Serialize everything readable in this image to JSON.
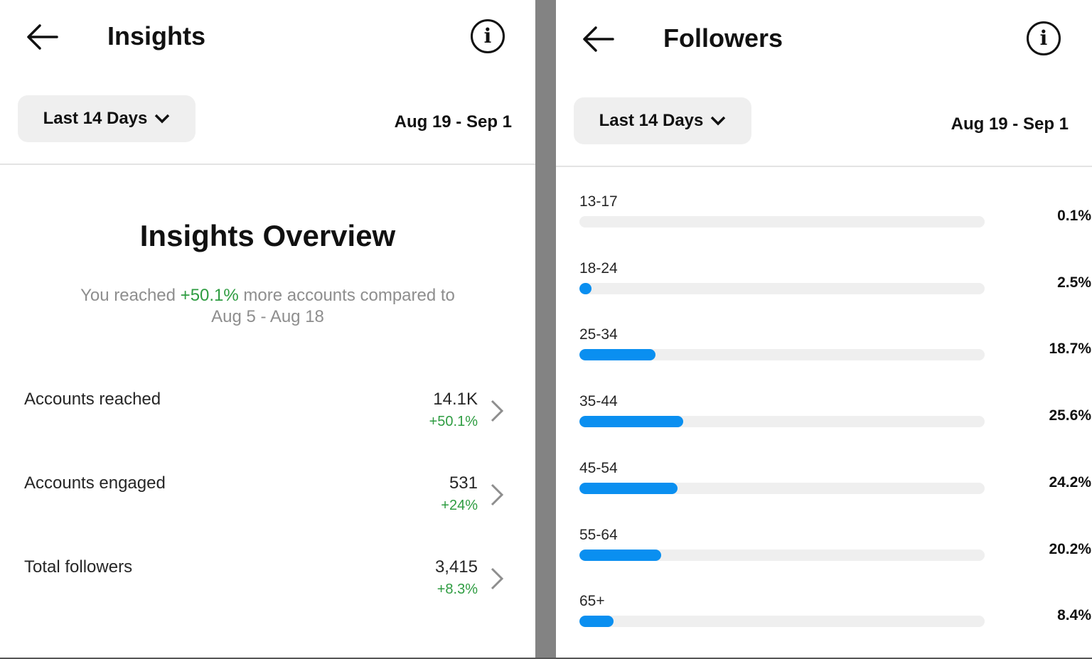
{
  "left": {
    "title": "Insights",
    "range_label": "Last 14 Days",
    "dates": "Aug 19 - Sep 1",
    "overview_title": "Insights Overview",
    "overview_pre": "You reached ",
    "overview_highlight": "+50.1%",
    "overview_post": " more accounts compared to",
    "overview_compare": "Aug 5 - Aug 18",
    "metrics": [
      {
        "label": "Accounts reached",
        "value": "14.1K",
        "change": "+50.1%"
      },
      {
        "label": "Accounts engaged",
        "value": "531",
        "change": "+24%"
      },
      {
        "label": "Total followers",
        "value": "3,415",
        "change": "+8.3%"
      }
    ]
  },
  "right": {
    "title": "Followers",
    "range_label": "Last 14 Days",
    "dates": "Aug 19 - Sep 1",
    "ages": [
      {
        "label": "13-17",
        "pct": "0.1%",
        "value": 0.1
      },
      {
        "label": "18-24",
        "pct": "2.5%",
        "value": 2.5
      },
      {
        "label": "25-34",
        "pct": "18.7%",
        "value": 18.7
      },
      {
        "label": "35-44",
        "pct": "25.6%",
        "value": 25.6
      },
      {
        "label": "45-54",
        "pct": "24.2%",
        "value": 24.2
      },
      {
        "label": "55-64",
        "pct": "20.2%",
        "value": 20.2
      },
      {
        "label": "65+",
        "pct": "8.4%",
        "value": 8.4
      }
    ]
  },
  "colors": {
    "accent": "#0a8ff0",
    "positive": "#2e9c41",
    "track": "#efefef"
  },
  "icons": [
    "back-arrow-icon",
    "info-icon",
    "chevron-down-icon",
    "chevron-right-icon"
  ]
}
